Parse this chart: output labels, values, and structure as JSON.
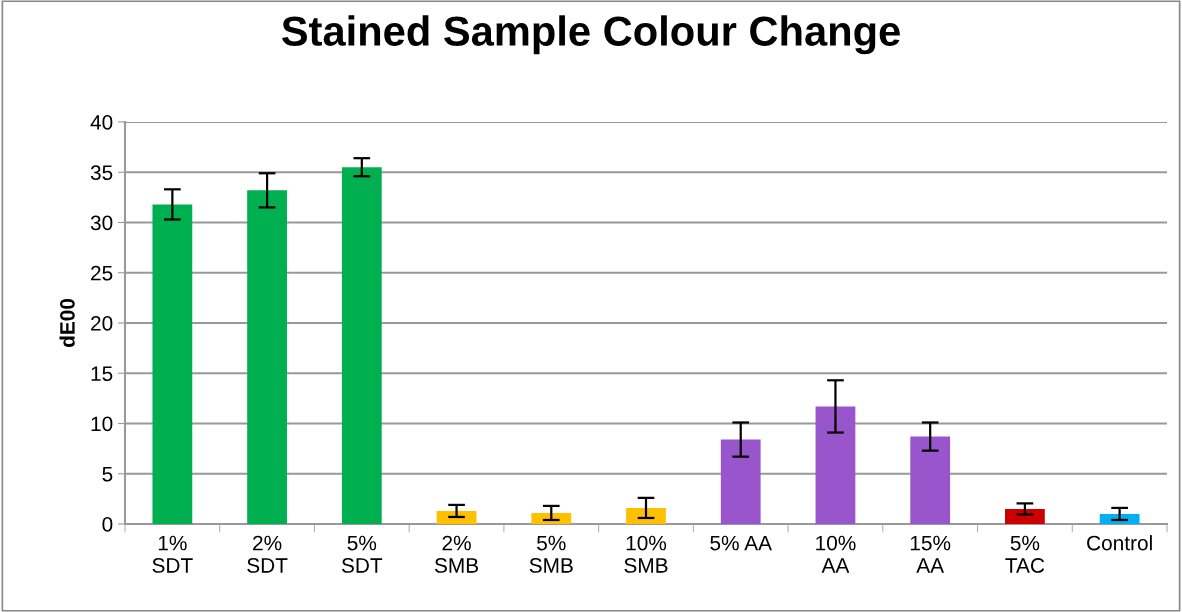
{
  "chart_data": {
    "type": "bar",
    "title": "Stained Sample Colour Change",
    "ylabel": "dE00",
    "categories": [
      "1%\nSDT",
      "2%\nSDT",
      "5%\nSDT",
      "2%\nSMB",
      "5%\nSMB",
      "10%\nSMB",
      "5% AA",
      "10%\nAA",
      "15%\nAA",
      "5%\nTAC",
      "Control"
    ],
    "values": [
      31.8,
      33.2,
      35.5,
      1.3,
      1.1,
      1.6,
      8.4,
      11.7,
      8.7,
      1.5,
      1.0
    ],
    "errors": [
      1.5,
      1.7,
      0.9,
      0.6,
      0.7,
      1.0,
      1.7,
      2.6,
      1.4,
      0.55,
      0.6
    ],
    "colors": [
      "#00b050",
      "#00b050",
      "#00b050",
      "#ffc000",
      "#ffc000",
      "#ffc000",
      "#9955cc",
      "#9955cc",
      "#9955cc",
      "#cc0000",
      "#00b0f0"
    ],
    "ylim": [
      0,
      40
    ],
    "yticks": [
      0,
      5,
      10,
      15,
      20,
      25,
      30,
      35,
      40
    ],
    "grid": "y",
    "legend": false
  }
}
